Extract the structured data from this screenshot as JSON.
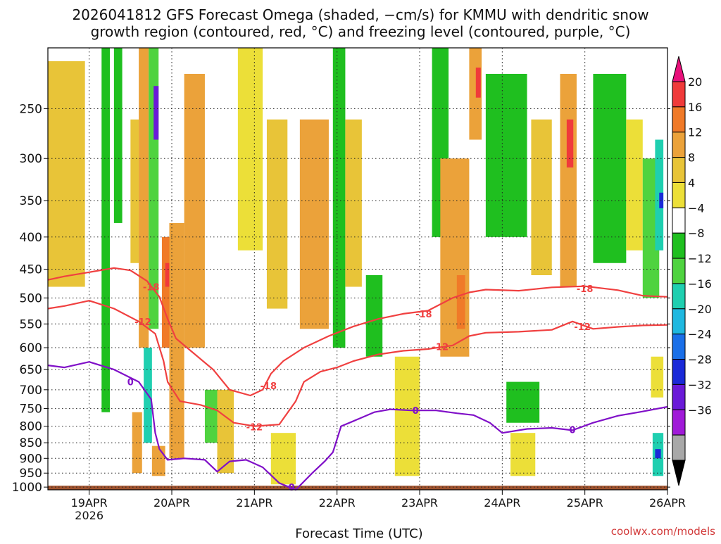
{
  "title_line1": "2026041812 GFS Forecast Omega (shaded, −cm/s) for KMMU with dendritic snow",
  "title_line2": "growth region (contoured, red, °C) and freezing level (contoured, purple, °C)",
  "xlabel": "Forecast Time (UTC)",
  "credit": "coolwx.com/models",
  "chart_data": {
    "type": "heatmap",
    "title": "2026041812 GFS Forecast Omega (shaded, −cm/s) for KMMU with dendritic snow growth region (contoured, red, °C) and freezing level (contoured, purple, °C)",
    "xlabel": "Forecast Time (UTC)",
    "ylabel": "Pressure (hPa)",
    "x_range_days": [
      18.5,
      26.0
    ],
    "y_range_hpa": [
      200,
      1010
    ],
    "x_ticks": [
      {
        "day": 19,
        "label": "19APR",
        "sublabel": "2026"
      },
      {
        "day": 20,
        "label": "20APR",
        "sublabel": ""
      },
      {
        "day": 21,
        "label": "21APR",
        "sublabel": ""
      },
      {
        "day": 22,
        "label": "22APR",
        "sublabel": ""
      },
      {
        "day": 23,
        "label": "23APR",
        "sublabel": ""
      },
      {
        "day": 24,
        "label": "24APR",
        "sublabel": ""
      },
      {
        "day": 25,
        "label": "25APR",
        "sublabel": ""
      },
      {
        "day": 26,
        "label": "26APR",
        "sublabel": ""
      }
    ],
    "y_ticks": [
      250,
      300,
      350,
      400,
      450,
      500,
      550,
      600,
      650,
      700,
      750,
      800,
      850,
      900,
      950,
      1000
    ],
    "grid": true,
    "colorbar": {
      "labels": [
        "20",
        "16",
        "12",
        "8",
        "4",
        "−4",
        "−8",
        "−12",
        "−16",
        "−20",
        "−24",
        "−28",
        "−32",
        "−36"
      ],
      "colors": [
        "#e8107a",
        "#f03a3a",
        "#f07a28",
        "#eba23a",
        "#e8c438",
        "#ecdf38",
        "#ffffff",
        "#1fbf1f",
        "#4fd33f",
        "#1fcfb0",
        "#1fb8e0",
        "#1a6fe8",
        "#1a2ad8",
        "#6a1ad8",
        "#a01ad8",
        "#a8a8a8",
        "#000000"
      ],
      "units": "−cm/s"
    },
    "omega_cells": [
      {
        "x0": 18.5,
        "x1": 18.95,
        "p0": 210,
        "p1": 480,
        "v": 6
      },
      {
        "x0": 18.95,
        "x1": 19.1,
        "p0": 200,
        "p1": 640,
        "v": 3
      },
      {
        "x0": 19.15,
        "x1": 19.25,
        "p0": 200,
        "p1": 760,
        "v": -6
      },
      {
        "x0": 19.3,
        "x1": 19.4,
        "p0": 200,
        "p1": 380,
        "v": -7
      },
      {
        "x0": 19.5,
        "x1": 19.6,
        "p0": 260,
        "p1": 440,
        "v": 7
      },
      {
        "x0": 19.6,
        "x1": 19.72,
        "p0": 200,
        "p1": 600,
        "v": 10
      },
      {
        "x0": 19.72,
        "x1": 19.84,
        "p0": 200,
        "p1": 560,
        "v": -10
      },
      {
        "x0": 19.78,
        "x1": 19.84,
        "p0": 230,
        "p1": 280,
        "v": -25
      },
      {
        "x0": 19.66,
        "x1": 19.76,
        "p0": 600,
        "p1": 850,
        "v": -12
      },
      {
        "x0": 19.52,
        "x1": 19.64,
        "p0": 760,
        "p1": 950,
        "v": 9
      },
      {
        "x0": 19.76,
        "x1": 19.92,
        "p0": 860,
        "p1": 960,
        "v": 10
      },
      {
        "x0": 19.88,
        "x1": 19.98,
        "p0": 400,
        "p1": 600,
        "v": 12
      },
      {
        "x0": 19.92,
        "x1": 19.97,
        "p0": 440,
        "p1": 480,
        "v": 18
      },
      {
        "x0": 19.97,
        "x1": 20.15,
        "p0": 380,
        "p1": 900,
        "v": 8
      },
      {
        "x0": 20.15,
        "x1": 20.4,
        "p0": 220,
        "p1": 600,
        "v": 9
      },
      {
        "x0": 20.4,
        "x1": 20.55,
        "p0": 700,
        "p1": 850,
        "v": -9
      },
      {
        "x0": 20.55,
        "x1": 20.75,
        "p0": 700,
        "p1": 950,
        "v": 6
      },
      {
        "x0": 20.8,
        "x1": 21.1,
        "p0": 200,
        "p1": 420,
        "v": 5
      },
      {
        "x0": 21.15,
        "x1": 21.4,
        "p0": 260,
        "p1": 520,
        "v": 7
      },
      {
        "x0": 21.2,
        "x1": 21.5,
        "p0": 820,
        "p1": 990,
        "v": 5
      },
      {
        "x0": 21.55,
        "x1": 21.9,
        "p0": 260,
        "p1": 560,
        "v": 8
      },
      {
        "x0": 21.62,
        "x1": 21.8,
        "p0": 300,
        "p1": 450,
        "v": 11
      },
      {
        "x0": 21.95,
        "x1": 22.1,
        "p0": 200,
        "p1": 600,
        "v": -7
      },
      {
        "x0": 22.1,
        "x1": 22.3,
        "p0": 260,
        "p1": 480,
        "v": 6
      },
      {
        "x0": 22.35,
        "x1": 22.55,
        "p0": 460,
        "p1": 620,
        "v": -6
      },
      {
        "x0": 22.7,
        "x1": 23.0,
        "p0": 620,
        "p1": 960,
        "v": 5
      },
      {
        "x0": 23.15,
        "x1": 23.35,
        "p0": 200,
        "p1": 400,
        "v": -7
      },
      {
        "x0": 23.25,
        "x1": 23.6,
        "p0": 300,
        "p1": 620,
        "v": 9
      },
      {
        "x0": 23.45,
        "x1": 23.55,
        "p0": 460,
        "p1": 560,
        "v": 15
      },
      {
        "x0": 23.6,
        "x1": 23.75,
        "p0": 200,
        "p1": 280,
        "v": 9
      },
      {
        "x0": 23.68,
        "x1": 23.74,
        "p0": 215,
        "p1": 240,
        "v": 18
      },
      {
        "x0": 23.8,
        "x1": 24.3,
        "p0": 220,
        "p1": 400,
        "v": -7
      },
      {
        "x0": 24.05,
        "x1": 24.45,
        "p0": 680,
        "p1": 790,
        "v": -7
      },
      {
        "x0": 24.1,
        "x1": 24.4,
        "p0": 820,
        "p1": 960,
        "v": 5
      },
      {
        "x0": 24.35,
        "x1": 24.6,
        "p0": 260,
        "p1": 460,
        "v": 6
      },
      {
        "x0": 24.7,
        "x1": 24.9,
        "p0": 220,
        "p1": 480,
        "v": 9
      },
      {
        "x0": 24.78,
        "x1": 24.86,
        "p0": 260,
        "p1": 310,
        "v": 17
      },
      {
        "x0": 25.1,
        "x1": 25.5,
        "p0": 220,
        "p1": 440,
        "v": -7
      },
      {
        "x0": 25.5,
        "x1": 25.7,
        "p0": 260,
        "p1": 420,
        "v": 5
      },
      {
        "x0": 25.7,
        "x1": 25.9,
        "p0": 300,
        "p1": 500,
        "v": -8
      },
      {
        "x0": 25.85,
        "x1": 25.95,
        "p0": 280,
        "p1": 420,
        "v": -14
      },
      {
        "x0": 25.9,
        "x1": 25.95,
        "p0": 340,
        "p1": 360,
        "v": -21
      },
      {
        "x0": 25.82,
        "x1": 25.95,
        "p0": 820,
        "p1": 960,
        "v": -12
      },
      {
        "x0": 25.85,
        "x1": 25.92,
        "p0": 870,
        "p1": 900,
        "v": -20
      },
      {
        "x0": 25.8,
        "x1": 25.95,
        "p0": 620,
        "p1": 720,
        "v": 5
      }
    ],
    "contours": [
      {
        "name": "-18",
        "color": "#f04040",
        "label_positions": [
          [
            19.75,
            480
          ],
          [
            21.17,
            690
          ],
          [
            23.05,
            530
          ],
          [
            25.0,
            483
          ]
        ],
        "points": [
          [
            18.5,
            468
          ],
          [
            18.7,
            462
          ],
          [
            19.0,
            455
          ],
          [
            19.3,
            448
          ],
          [
            19.5,
            452
          ],
          [
            19.7,
            470
          ],
          [
            19.85,
            498
          ],
          [
            19.95,
            540
          ],
          [
            20.05,
            580
          ],
          [
            20.25,
            610
          ],
          [
            20.5,
            650
          ],
          [
            20.7,
            700
          ],
          [
            20.95,
            715
          ],
          [
            21.1,
            700
          ],
          [
            21.2,
            660
          ],
          [
            21.35,
            630
          ],
          [
            21.6,
            600
          ],
          [
            21.9,
            575
          ],
          [
            22.2,
            555
          ],
          [
            22.5,
            540
          ],
          [
            22.8,
            530
          ],
          [
            23.1,
            524
          ],
          [
            23.4,
            500
          ],
          [
            23.6,
            490
          ],
          [
            23.8,
            485
          ],
          [
            24.2,
            487
          ],
          [
            24.6,
            481
          ],
          [
            25.0,
            479
          ],
          [
            25.4,
            486
          ],
          [
            25.7,
            496
          ],
          [
            26.0,
            498
          ]
        ]
      },
      {
        "name": "-12",
        "color": "#f04040",
        "label_positions": [
          [
            19.65,
            545
          ],
          [
            21.0,
            802
          ],
          [
            23.25,
            598
          ],
          [
            24.97,
            555
          ]
        ],
        "points": [
          [
            18.5,
            520
          ],
          [
            18.7,
            515
          ],
          [
            19.0,
            505
          ],
          [
            19.3,
            520
          ],
          [
            19.6,
            545
          ],
          [
            19.8,
            570
          ],
          [
            19.9,
            630
          ],
          [
            19.95,
            680
          ],
          [
            20.1,
            730
          ],
          [
            20.35,
            740
          ],
          [
            20.55,
            755
          ],
          [
            20.75,
            790
          ],
          [
            21.0,
            800
          ],
          [
            21.3,
            795
          ],
          [
            21.5,
            730
          ],
          [
            21.6,
            680
          ],
          [
            21.8,
            655
          ],
          [
            22.0,
            645
          ],
          [
            22.2,
            630
          ],
          [
            22.5,
            615
          ],
          [
            22.8,
            607
          ],
          [
            23.1,
            603
          ],
          [
            23.4,
            595
          ],
          [
            23.6,
            575
          ],
          [
            23.8,
            568
          ],
          [
            24.2,
            566
          ],
          [
            24.6,
            562
          ],
          [
            24.85,
            545
          ],
          [
            25.1,
            560
          ],
          [
            25.4,
            556
          ],
          [
            25.7,
            553
          ],
          [
            26.0,
            552
          ]
        ]
      },
      {
        "name": "0",
        "color": "#8010c8",
        "label_positions": [
          [
            19.5,
            680
          ],
          [
            21.45,
            1000
          ],
          [
            22.95,
            755
          ],
          [
            24.85,
            810
          ]
        ],
        "points": [
          [
            18.5,
            640
          ],
          [
            18.7,
            645
          ],
          [
            19.0,
            632
          ],
          [
            19.3,
            650
          ],
          [
            19.6,
            680
          ],
          [
            19.75,
            725
          ],
          [
            19.8,
            820
          ],
          [
            19.85,
            870
          ],
          [
            19.95,
            905
          ],
          [
            20.15,
            900
          ],
          [
            20.4,
            905
          ],
          [
            20.55,
            945
          ],
          [
            20.7,
            910
          ],
          [
            20.9,
            905
          ],
          [
            21.1,
            930
          ],
          [
            21.3,
            985
          ],
          [
            21.5,
            1010
          ],
          [
            21.7,
            950
          ],
          [
            21.85,
            910
          ],
          [
            21.95,
            880
          ],
          [
            22.05,
            800
          ],
          [
            22.2,
            785
          ],
          [
            22.45,
            760
          ],
          [
            22.65,
            752
          ],
          [
            22.9,
            755
          ],
          [
            23.2,
            755
          ],
          [
            23.45,
            763
          ],
          [
            23.65,
            768
          ],
          [
            23.85,
            790
          ],
          [
            24.0,
            820
          ],
          [
            24.3,
            808
          ],
          [
            24.6,
            805
          ],
          [
            24.85,
            812
          ],
          [
            25.1,
            790
          ],
          [
            25.4,
            770
          ],
          [
            25.7,
            758
          ],
          [
            26.0,
            745
          ]
        ]
      }
    ]
  }
}
